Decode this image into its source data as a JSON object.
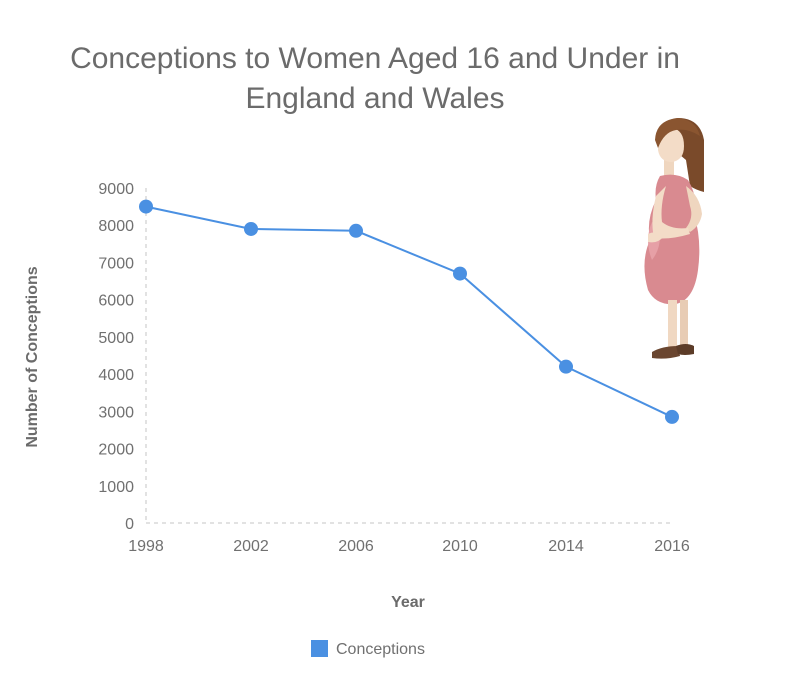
{
  "chart_data": {
    "type": "line",
    "title_line1": "Conceptions to Women Aged 16 and Under in",
    "title_line2": "England and Wales",
    "xlabel": "Year",
    "ylabel": "Number of Conceptions",
    "categories": [
      "1998",
      "2002",
      "2006",
      "2010",
      "2014",
      "2016"
    ],
    "series": [
      {
        "name": "Conceptions",
        "values": [
          8500,
          7900,
          7850,
          6700,
          4200,
          2850
        ],
        "color": "#4a90e2"
      }
    ],
    "ylim": [
      0,
      9000
    ],
    "yticks": [
      "0",
      "1000",
      "2000",
      "3000",
      "4000",
      "5000",
      "6000",
      "7000",
      "8000",
      "9000"
    ],
    "legend_position": "bottom",
    "grid": false
  },
  "illustration": {
    "icon": "pregnant-woman-icon"
  }
}
